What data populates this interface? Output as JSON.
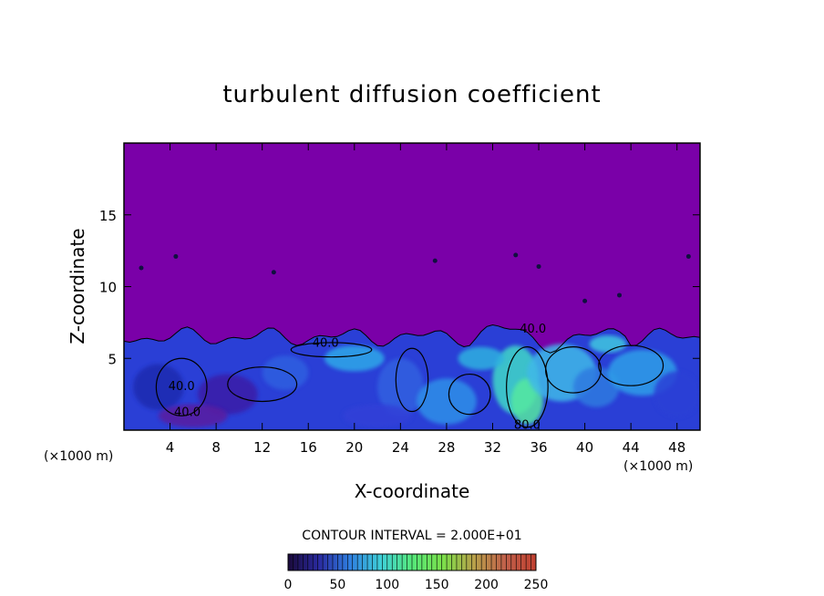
{
  "chart_data": {
    "type": "heatmap",
    "title": "turbulent diffusion coefficient",
    "xlabel": "X-coordinate",
    "ylabel": "Z-coordinate",
    "x_unit": "(×1000 m)",
    "y_unit": "(×1000 m)",
    "xlim": [
      0,
      50
    ],
    "ylim": [
      0,
      20
    ],
    "x_ticks": [
      4,
      8,
      12,
      16,
      20,
      24,
      28,
      32,
      36,
      40,
      44,
      48
    ],
    "y_ticks": [
      5,
      10,
      15
    ],
    "colorbar": {
      "min": 0,
      "max": 250,
      "ticks": [
        0,
        50,
        100,
        150,
        200,
        250
      ],
      "colors": [
        "#1a0a3a",
        "#2a2aa0",
        "#2f7fe0",
        "#3fd0d8",
        "#55e87a",
        "#7be04a",
        "#b8a04a",
        "#c0604a",
        "#c04030"
      ]
    },
    "contour_interval_text": "CONTOUR INTERVAL = 2.000E+01",
    "contour_interval": 20,
    "contour_labels": [
      {
        "text": "40.0",
        "x": 17.5,
        "z": 5.8
      },
      {
        "text": "40.0",
        "x": 5.0,
        "z": 2.8
      },
      {
        "text": "40.0",
        "x": 5.5,
        "z": 1.0
      },
      {
        "text": "40.0",
        "x": 35.5,
        "z": 6.8
      },
      {
        "text": "80.0",
        "x": 35.0,
        "z": 0.1
      }
    ],
    "background_value": 0,
    "description_fields": {
      "boundary_layer_top_km": 6.5
    }
  }
}
